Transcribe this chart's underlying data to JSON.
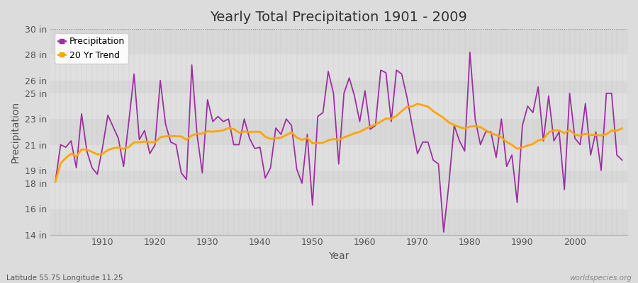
{
  "title": "Yearly Total Precipitation 1901 - 2009",
  "xlabel": "Year",
  "ylabel": "Precipitation",
  "bottom_left": "Latitude 55.75 Longitude 11.25",
  "bottom_right": "worldspecies.org",
  "years": [
    1901,
    1902,
    1903,
    1904,
    1905,
    1906,
    1907,
    1908,
    1909,
    1910,
    1911,
    1912,
    1913,
    1914,
    1915,
    1916,
    1917,
    1918,
    1919,
    1920,
    1921,
    1922,
    1923,
    1924,
    1925,
    1926,
    1927,
    1928,
    1929,
    1930,
    1931,
    1932,
    1933,
    1934,
    1935,
    1936,
    1937,
    1938,
    1939,
    1940,
    1941,
    1942,
    1943,
    1944,
    1945,
    1946,
    1947,
    1948,
    1949,
    1950,
    1951,
    1952,
    1953,
    1954,
    1955,
    1956,
    1957,
    1958,
    1959,
    1960,
    1961,
    1962,
    1963,
    1964,
    1965,
    1966,
    1967,
    1968,
    1969,
    1970,
    1971,
    1972,
    1973,
    1974,
    1975,
    1976,
    1977,
    1978,
    1979,
    1980,
    1981,
    1982,
    1983,
    1984,
    1985,
    1986,
    1987,
    1988,
    1989,
    1990,
    1991,
    1992,
    1993,
    1994,
    1995,
    1996,
    1997,
    1998,
    1999,
    2000,
    2001,
    2002,
    2003,
    2004,
    2005,
    2006,
    2007,
    2008,
    2009
  ],
  "precip": [
    18.1,
    21.0,
    20.8,
    21.3,
    19.2,
    23.4,
    20.5,
    19.2,
    18.7,
    20.8,
    23.3,
    22.4,
    21.5,
    19.3,
    22.8,
    26.5,
    21.4,
    22.1,
    20.3,
    21.0,
    26.0,
    22.6,
    21.2,
    21.0,
    18.8,
    18.3,
    27.2,
    21.8,
    18.8,
    24.5,
    22.8,
    23.2,
    22.8,
    23.0,
    21.0,
    21.0,
    23.0,
    21.5,
    20.7,
    20.8,
    18.4,
    19.2,
    22.3,
    21.8,
    23.0,
    22.5,
    19.1,
    18.0,
    21.8,
    16.3,
    23.2,
    23.5,
    26.7,
    25.0,
    19.5,
    25.0,
    26.2,
    24.8,
    22.8,
    25.2,
    22.2,
    22.5,
    26.8,
    26.6,
    22.8,
    26.8,
    26.5,
    24.7,
    22.5,
    20.3,
    21.2,
    21.2,
    19.8,
    19.5,
    14.2,
    18.0,
    22.5,
    21.3,
    20.5,
    28.2,
    23.0,
    21.0,
    22.0,
    22.0,
    20.0,
    23.0,
    19.3,
    20.2,
    16.5,
    22.5,
    24.0,
    23.5,
    25.5,
    21.3,
    24.8,
    21.3,
    22.0,
    17.5,
    25.0,
    21.5,
    21.0,
    24.2,
    20.2,
    22.0,
    19.0,
    25.0,
    25.0,
    20.2,
    19.8
  ],
  "ylim": [
    14,
    30
  ],
  "yticks": [
    14,
    16,
    18,
    19,
    21,
    23,
    25,
    26,
    28,
    30
  ],
  "ytick_labels": [
    "14 in",
    "16 in",
    "18 in",
    "19 in",
    "21 in",
    "23 in",
    "25 in",
    "26 in",
    "28 in",
    "30 in"
  ],
  "bg_color": "#dcdcdc",
  "plot_bg_bands": [
    [
      30,
      28,
      "#d8d8d8"
    ],
    [
      28,
      26,
      "#e0e0e0"
    ],
    [
      26,
      25,
      "#d8d8d8"
    ],
    [
      25,
      23,
      "#e0e0e0"
    ],
    [
      23,
      21,
      "#d8d8d8"
    ],
    [
      21,
      19,
      "#e0e0e0"
    ],
    [
      19,
      18,
      "#d8d8d8"
    ],
    [
      18,
      16,
      "#e0e0e0"
    ],
    [
      16,
      14,
      "#d8d8d8"
    ]
  ],
  "precip_color": "#9B30A0",
  "trend_color": "#FFA500",
  "grid_color_v": "#c8c8c8",
  "title_fontsize": 14,
  "axis_label_fontsize": 10,
  "tick_fontsize": 9,
  "legend_fontsize": 9
}
